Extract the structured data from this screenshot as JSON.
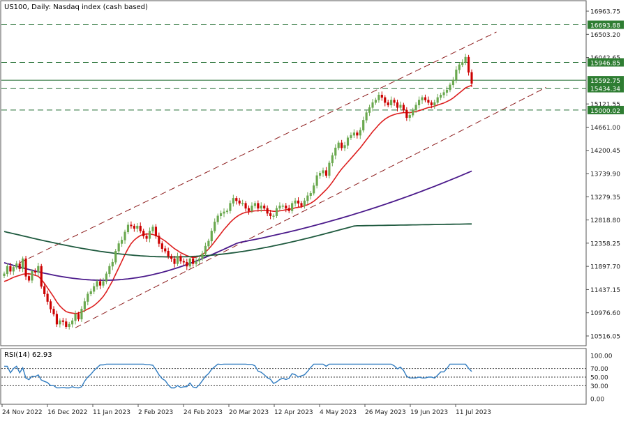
{
  "title": "US100, Daily:  Nasdaq index (cash based)",
  "rsi_label": "RSI(14) 62.93",
  "colors": {
    "up_candle": "#6aa84f",
    "down_candle": "#cc0000",
    "ma_fast": "#dd1f1f",
    "ma_mid": "#4b1a8b",
    "ma_slow": "#1f5a3f",
    "channel": "#8b1a1a",
    "level_line": "#1e6b2e",
    "level_label_bg": "#2e7d32",
    "rsi_line": "#2f7bc0"
  },
  "chart_data": [
    {
      "type": "candlestick",
      "title": "US100, Daily:  Nasdaq index (cash based)",
      "x_tick_labels": [
        "24 Nov 2022",
        "16 Dec 2022",
        "11 Jan 2023",
        "2 Feb 2023",
        "24 Feb 2023",
        "20 Mar 2023",
        "12 Apr 2023",
        "4 May 2023",
        "26 May 2023",
        "19 Jun 2023",
        "11 Jul 2023"
      ],
      "y_tick_labels": [
        "16963.75",
        "16503.20",
        "16042.65",
        "15121.55",
        "14661.00",
        "14200.45",
        "13739.90",
        "13279.35",
        "12818.80",
        "12358.25",
        "11897.70",
        "11437.15",
        "10976.60",
        "10516.05"
      ],
      "ylim": [
        10350,
        17130
      ],
      "horizontal_levels": [
        {
          "value": 16693.88,
          "label": "16693.88",
          "style": "dashed"
        },
        {
          "value": 15946.85,
          "label": "15946.85",
          "style": "dashed"
        },
        {
          "value": 15592.75,
          "label": "15592.75",
          "style": "solid"
        },
        {
          "value": 15434.34,
          "label": "15434.34",
          "style": "dashed"
        },
        {
          "value": 15000.02,
          "label": "15000.02",
          "style": "dashed"
        }
      ],
      "channel_lines": [
        {
          "from": {
            "index": 5,
            "value": 11970
          },
          "to": {
            "index": 159,
            "value": 16550
          }
        },
        {
          "from": {
            "index": 23,
            "value": 10680
          },
          "to": {
            "index": 175,
            "value": 15450
          }
        }
      ],
      "close": [
        11750,
        11900,
        11800,
        11880,
        11950,
        11850,
        12050,
        11700,
        11620,
        11800,
        11780,
        11900,
        11500,
        11350,
        11200,
        11050,
        10950,
        10750,
        10820,
        10800,
        10700,
        10750,
        10820,
        10950,
        10850,
        11050,
        11200,
        11350,
        11400,
        11500,
        11600,
        11520,
        11600,
        11750,
        11900,
        11980,
        12200,
        12350,
        12420,
        12580,
        12720,
        12700,
        12650,
        12700,
        12600,
        12500,
        12450,
        12600,
        12680,
        12500,
        12350,
        12250,
        12200,
        12100,
        12050,
        11950,
        12100,
        12000,
        11980,
        11900,
        12050,
        11950,
        12000,
        12050,
        12150,
        12300,
        12400,
        12600,
        12780,
        12900,
        12950,
        12980,
        13000,
        13150,
        13250,
        13200,
        13150,
        13150,
        13050,
        13000,
        13100,
        13150,
        13050,
        13100,
        13050,
        12950,
        12900,
        12900,
        13050,
        13100,
        13100,
        13050,
        13000,
        13150,
        13200,
        13150,
        13100,
        13200,
        13300,
        13350,
        13500,
        13700,
        13750,
        13800,
        13700,
        13950,
        14100,
        14250,
        14350,
        14250,
        14300,
        14450,
        14500,
        14550,
        14500,
        14600,
        14800,
        14950,
        15050,
        15150,
        15200,
        15300,
        15250,
        15150,
        15100,
        15200,
        15150,
        15050,
        15100,
        15000,
        14850,
        14900,
        15000,
        15100,
        15200,
        15250,
        15200,
        15150,
        15100,
        15150,
        15250,
        15300,
        15350,
        15400,
        15500,
        15600,
        15800,
        15900,
        15950,
        16050,
        15750,
        15530
      ],
      "ma_fast_period_visible": true,
      "ma_fast": [
        11600,
        11620,
        11650,
        11680,
        11700,
        11720,
        11740,
        11750,
        11750,
        11740,
        11720,
        11700,
        11640,
        11560,
        11470,
        11380,
        11290,
        11190,
        11110,
        11050,
        11000,
        10980,
        10970,
        10960,
        10970,
        10990,
        11020,
        11050,
        11080,
        11120,
        11170,
        11230,
        11300,
        11390,
        11500,
        11610,
        11740,
        11870,
        12000,
        12130,
        12250,
        12350,
        12420,
        12470,
        12510,
        12530,
        12540,
        12540,
        12530,
        12510,
        12480,
        12440,
        12400,
        12350,
        12300,
        12250,
        12210,
        12170,
        12140,
        12110,
        12090,
        12070,
        12080,
        12100,
        12130,
        12180,
        12240,
        12310,
        12390,
        12470,
        12550,
        12630,
        12700,
        12770,
        12830,
        12880,
        12920,
        12950,
        12970,
        12980,
        12990,
        13000,
        13000,
        13010,
        13010,
        13010,
        13000,
        12990,
        12990,
        13000,
        13010,
        13020,
        13030,
        13040,
        13060,
        13070,
        13080,
        13100,
        13120,
        13150,
        13190,
        13240,
        13300,
        13360,
        13420,
        13490,
        13570,
        13660,
        13750,
        13830,
        13900,
        13970,
        14040,
        14110,
        14180,
        14250,
        14330,
        14410,
        14490,
        14570,
        14640,
        14710,
        14770,
        14820,
        14860,
        14890,
        14910,
        14930,
        14940,
        14950,
        14950,
        14950,
        14960,
        14970,
        14990,
        15010,
        15030,
        15050,
        15060,
        15080,
        15100,
        15120,
        15140,
        15170,
        15200,
        15240,
        15290,
        15340,
        15390,
        15440,
        15470,
        15490
      ],
      "ma_mid_endpoints": {
        "start_value": 11970,
        "end_value": 13790
      },
      "ma_slow_endpoints": {
        "start_value": 12590,
        "end_value": 12740
      },
      "rsi": {
        "yticks": [
          "100.00",
          "70.00",
          "50.00",
          "30.00",
          "0.00"
        ],
        "levels": [
          70,
          50,
          30
        ],
        "last": 62.93
      }
    }
  ]
}
